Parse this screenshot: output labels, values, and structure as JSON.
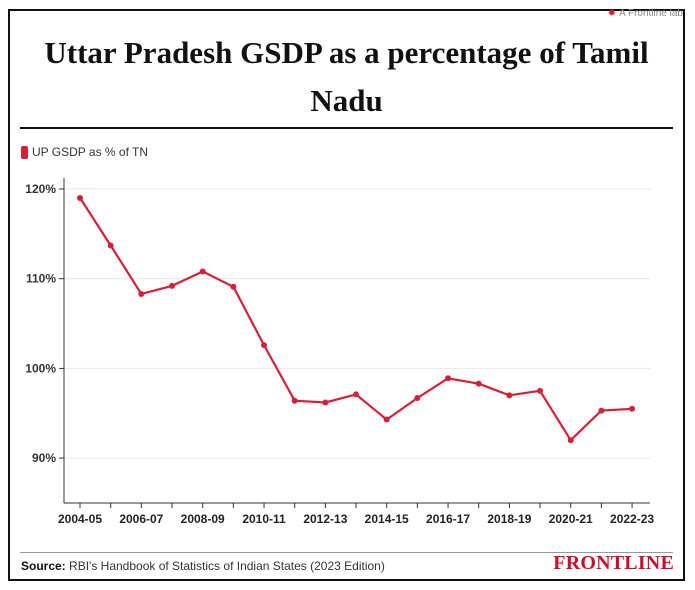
{
  "corner_credit": "A Frontline lab",
  "title": "Uttar Pradesh GSDP as a percentage of Tamil Nadu",
  "legend": {
    "label": "UP GSDP as % of TN",
    "color": "#d4213a"
  },
  "source": {
    "label": "Source:",
    "text": "RBI's Handbook of Statistics of Indian States (2023 Edition)"
  },
  "brand": "FRONTLINE",
  "chart_data": {
    "type": "line",
    "title": "Uttar Pradesh GSDP as a percentage of Tamil Nadu",
    "xlabel": "",
    "ylabel": "",
    "ylim": [
      85,
      121
    ],
    "yticks": [
      90,
      100,
      110,
      120
    ],
    "ytick_labels": [
      "90%",
      "100%",
      "110%",
      "120%"
    ],
    "grid": true,
    "legend_position": "top-left",
    "x": [
      "2004-05",
      "2005-06",
      "2006-07",
      "2007-08",
      "2008-09",
      "2009-10",
      "2010-11",
      "2011-12",
      "2012-13",
      "2013-14",
      "2014-15",
      "2015-16",
      "2016-17",
      "2017-18",
      "2018-19",
      "2019-20",
      "2020-21",
      "2021-22",
      "2022-23"
    ],
    "xtick_labels": [
      "2004-05",
      "2006-07",
      "2008-09",
      "2010-11",
      "2012-13",
      "2014-15",
      "2016-17",
      "2018-19",
      "2020-21",
      "2022-23"
    ],
    "series": [
      {
        "name": "UP GSDP as % of TN",
        "color": "#d4213a",
        "values": [
          119.0,
          113.7,
          108.3,
          109.2,
          110.8,
          109.1,
          102.6,
          96.4,
          96.2,
          97.1,
          94.3,
          96.7,
          98.9,
          98.3,
          97.0,
          97.5,
          92.0,
          95.3,
          95.5
        ]
      }
    ]
  }
}
